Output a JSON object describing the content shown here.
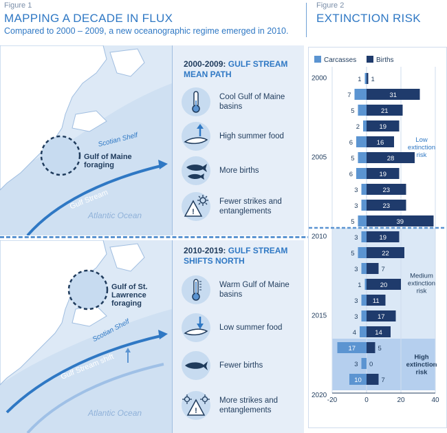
{
  "figure1": {
    "label": "Figure 1",
    "title": "MAPPING A DECADE IN FLUX",
    "subtitle": "Compared to 2000 – 2009, a new oceanographic regime emerged in 2010."
  },
  "figure2": {
    "label": "Figure 2",
    "title": "EXTINCTION RISK"
  },
  "top_panel": {
    "legend_title_prefix": "2000-2009:",
    "legend_title_hl_1": "GULF STREAM",
    "legend_title_hl_2": "MEAN PATH",
    "items": [
      {
        "icon": "thermometer-cool-icon",
        "text": "Cool Gulf of Maine basins"
      },
      {
        "icon": "food-up-icon",
        "text": "High summer food"
      },
      {
        "icon": "whale-pair-icon",
        "text": "More births"
      },
      {
        "icon": "hazard-icon",
        "text": "Fewer strikes and entanglements"
      }
    ],
    "map": {
      "foraging_label": "Gulf of Maine foraging",
      "shelf_label": "Scotian Shelf",
      "stream_label": "Gulf Stream",
      "ocean_label": "Atlantic Ocean"
    }
  },
  "bottom_panel": {
    "legend_title_prefix": "2010-2019:",
    "legend_title_hl_1": "GULF STREAM",
    "legend_title_hl_2": "SHIFTS NORTH",
    "items": [
      {
        "icon": "thermometer-warm-icon",
        "text": "Warm Gulf of Maine basins"
      },
      {
        "icon": "food-down-icon",
        "text": "Low summer food"
      },
      {
        "icon": "single-whale-icon",
        "text": "Fewer births"
      },
      {
        "icon": "hazard-many-icon",
        "text": "More strikes and entanglements"
      }
    ],
    "map": {
      "foraging_label": "Gulf of St. Lawrence foraging",
      "shelf_label": "Scotian Shelf",
      "stream_label": "Gulf Stream shift",
      "ocean_label": "Atlantic Ocean"
    }
  },
  "chart_data": {
    "type": "bar",
    "orientation": "horizontal-diverging",
    "legend": [
      "Carcasses",
      "Births"
    ],
    "legend_position": "top",
    "years": [
      2000,
      2001,
      2002,
      2003,
      2004,
      2005,
      2006,
      2007,
      2008,
      2009,
      2010,
      2011,
      2012,
      2013,
      2014,
      2015,
      2016,
      2017,
      2018,
      2019
    ],
    "year_tick_labels": [
      "2000",
      "2005",
      "2010",
      "2015",
      "2020"
    ],
    "series": [
      {
        "name": "Carcasses",
        "color": "#5b94d1",
        "values": [
          1,
          7,
          5,
          2,
          6,
          5,
          6,
          3,
          3,
          5,
          3,
          5,
          3,
          1,
          3,
          3,
          4,
          17,
          3,
          10
        ]
      },
      {
        "name": "Births",
        "color": "#1f3b6c",
        "values": [
          1,
          31,
          21,
          19,
          16,
          28,
          19,
          23,
          23,
          39,
          19,
          22,
          7,
          20,
          11,
          17,
          14,
          5,
          0,
          7
        ]
      }
    ],
    "x_ticks": [
      -20,
      0,
      20,
      40
    ],
    "xlim": [
      -20,
      40
    ],
    "risk_bands": [
      {
        "label": "Low extinction risk",
        "from_year": 2000,
        "to_year": 2009,
        "color": "#ffffff",
        "text_color": "#2f78c4"
      },
      {
        "label": "Medium extinction risk",
        "from_year": 2010,
        "to_year": 2016,
        "color": "#dbe8f6",
        "text_color": "#1f3b5c"
      },
      {
        "label": "High extinction risk",
        "from_year": 2017,
        "to_year": 2019,
        "color": "#b5cfee",
        "text_color": "#1f3b5c"
      }
    ],
    "regime_shift_year_label": "2010"
  }
}
